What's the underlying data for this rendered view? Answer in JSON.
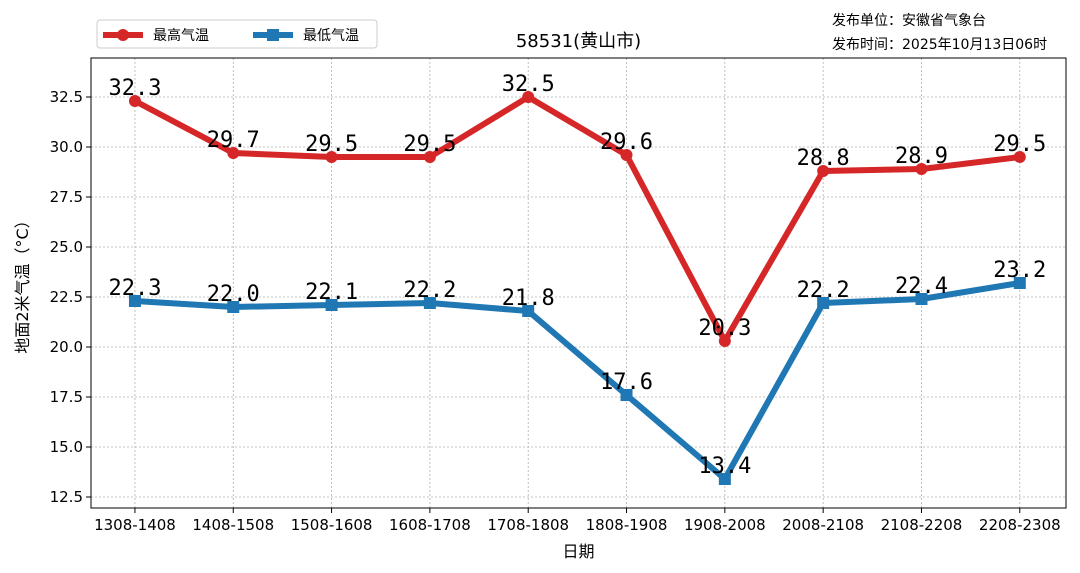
{
  "chart_data": {
    "type": "line",
    "title": "58531(黄山市)",
    "xlabel": "日期",
    "ylabel": "地面2米气温（°C）",
    "categories": [
      "1308-1408",
      "1408-1508",
      "1508-1608",
      "1608-1708",
      "1708-1808",
      "1808-1908",
      "1908-2008",
      "2008-2108",
      "2108-2208",
      "2208-2308"
    ],
    "series": [
      {
        "name": "最高气温",
        "color": "#d62728",
        "marker": "circle",
        "values": [
          32.3,
          29.7,
          29.5,
          29.5,
          32.5,
          29.6,
          20.3,
          28.8,
          28.9,
          29.5
        ]
      },
      {
        "name": "最低气温",
        "color": "#1f77b4",
        "marker": "square",
        "values": [
          22.3,
          22.0,
          22.1,
          22.2,
          21.8,
          17.6,
          13.4,
          22.2,
          22.4,
          23.2
        ]
      }
    ],
    "yticks": [
      "12.5",
      "15.0",
      "17.5",
      "20.0",
      "22.5",
      "25.0",
      "27.5",
      "30.0",
      "32.5"
    ],
    "ylim": [
      11.95,
      34.45
    ],
    "grid": true,
    "legend": "top-left"
  },
  "info": {
    "unit": "发布单位：安徽省气象台",
    "time": "发布时间：2025年10月13日06时"
  }
}
